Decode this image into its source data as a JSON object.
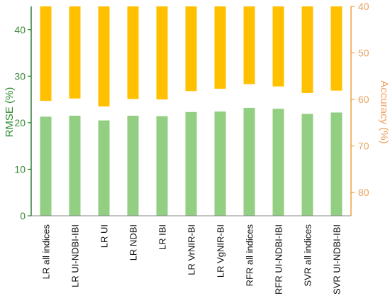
{
  "chart_data": {
    "type": "bar",
    "categories": [
      "LR all indices",
      "LR UI-NDBI-IBI",
      "LR UI",
      "LR NDBI",
      "LR IBI",
      "LR VrNIR-BI",
      "LR VgNIR-BI",
      "RFR all indices",
      "RFR UI-NDBI-IBI",
      "SVR all indices",
      "SVR UI-NDBI-IBI"
    ],
    "series": [
      {
        "axis": "left",
        "color": "#92cf82",
        "values": [
          21.3,
          21.5,
          20.5,
          21.5,
          21.4,
          22.3,
          22.4,
          23.2,
          23.0,
          21.9,
          22.2
        ]
      },
      {
        "axis": "right",
        "color": "#ffc000",
        "values": [
          60.3,
          59.8,
          61.5,
          59.9,
          60.0,
          58.2,
          57.7,
          56.7,
          57.2,
          58.6,
          58.1
        ]
      }
    ],
    "ylabel": "RMSE (%)",
    "ylim": [
      0,
      45
    ],
    "yticks": [
      0,
      10,
      20,
      30,
      40
    ],
    "y2label": "Accuracy (%)",
    "y2lim": [
      40,
      85
    ],
    "y2ticks": [
      40,
      50,
      60,
      70,
      80
    ],
    "y2_inverted": true,
    "grid": false
  }
}
